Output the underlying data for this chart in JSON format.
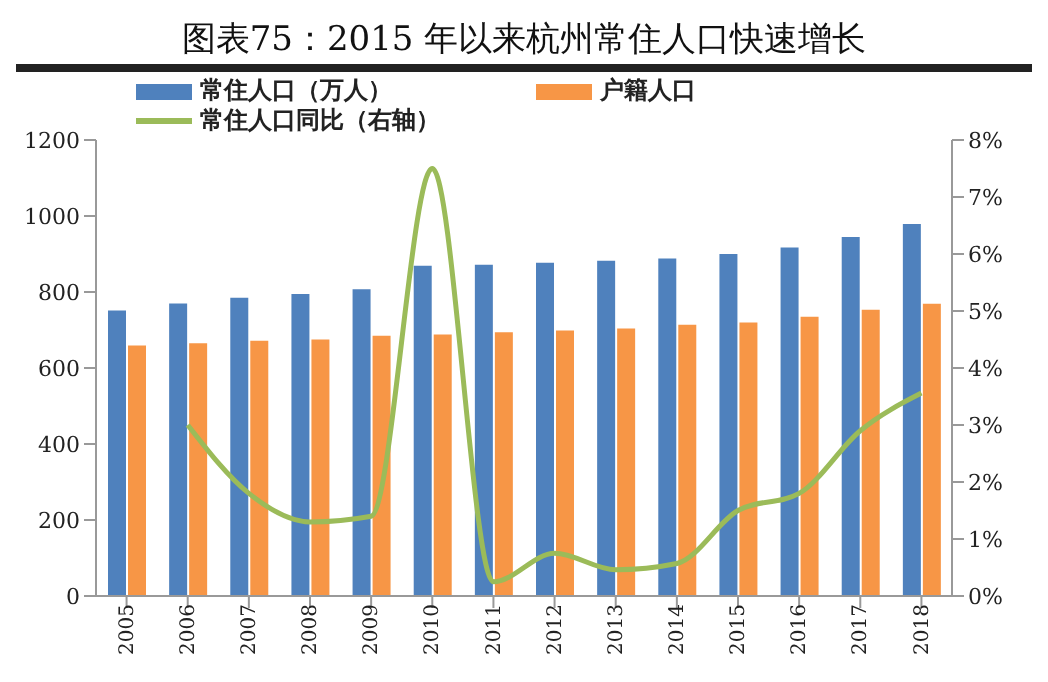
{
  "chart_data": {
    "type": "bar",
    "title": "图表75：2015 年以来杭州常住人口快速增长",
    "categories": [
      "2005",
      "2006",
      "2007",
      "2008",
      "2009",
      "2010",
      "2011",
      "2012",
      "2013",
      "2014",
      "2015",
      "2016",
      "2017",
      "2018"
    ],
    "series": [
      {
        "name": "常住人口（万人）",
        "color": "#4f81bd",
        "values": [
          751,
          770,
          785,
          795,
          807,
          869,
          872,
          877,
          882,
          888,
          900,
          917,
          945,
          979
        ]
      },
      {
        "name": "户籍人口",
        "color": "#f79646",
        "values": [
          659,
          665,
          672,
          675,
          685,
          688,
          694,
          699,
          704,
          714,
          720,
          735,
          753,
          769
        ]
      },
      {
        "name": "常住人口同比（右轴）",
        "type": "line",
        "axis": "y2",
        "color": "#9bbb59",
        "values": [
          null,
          3.0,
          1.8,
          1.3,
          1.4,
          7.5,
          0.25,
          0.75,
          0.46,
          0.57,
          1.5,
          1.8,
          2.9,
          3.56
        ]
      }
    ],
    "ylim": [
      0,
      1200
    ],
    "yticks": [
      0,
      200,
      400,
      600,
      800,
      1000,
      1200
    ],
    "y2lim": [
      0,
      8
    ],
    "y2ticks": [
      {
        "value": 0,
        "label": "0%"
      },
      {
        "value": 1,
        "label": "1%"
      },
      {
        "value": 2,
        "label": "2%"
      },
      {
        "value": 3,
        "label": "3%"
      },
      {
        "value": 4,
        "label": "4%"
      },
      {
        "value": 5,
        "label": "5%"
      },
      {
        "value": 6,
        "label": "6%"
      },
      {
        "value": 7,
        "label": "7%"
      },
      {
        "value": 8,
        "label": "8%"
      }
    ],
    "legend": "top",
    "grid": false,
    "marker": "none"
  }
}
